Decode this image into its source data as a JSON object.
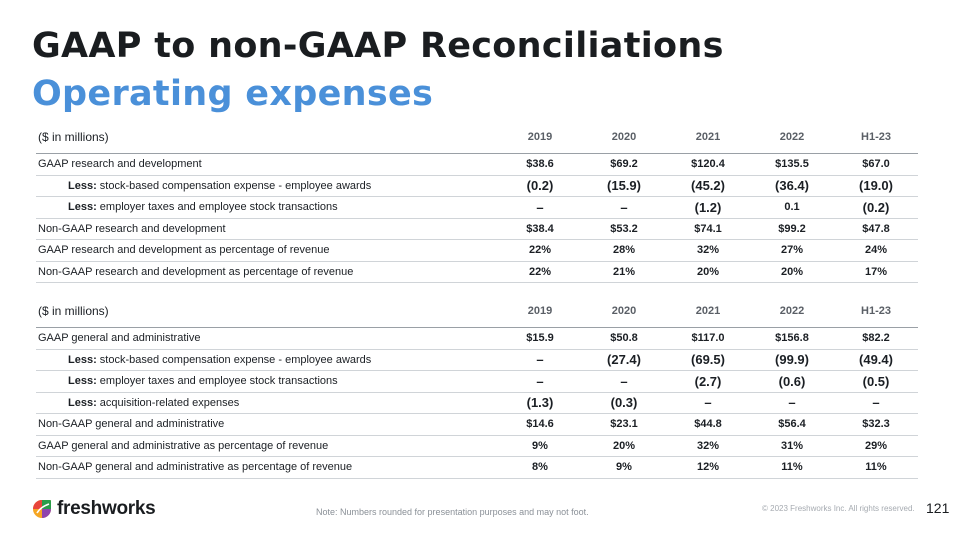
{
  "title": "GAAP to non-GAAP Reconciliations",
  "subtitle": "Operating expenses",
  "rd_table": {
    "unit_label": "($ in millions)",
    "years": [
      "2019",
      "2020",
      "2021",
      "2022",
      "H1-23"
    ],
    "rows": [
      {
        "less": "",
        "label": "GAAP research and development",
        "values": [
          "$38.6",
          "$69.2",
          "$120.4",
          "$135.5",
          "$67.0"
        ],
        "indent": false
      },
      {
        "less": "Less:",
        "label": " stock-based compensation expense - employee awards",
        "values": [
          "(0.2)",
          "(15.9)",
          "(45.2)",
          "(36.4)",
          "(19.0)"
        ],
        "indent": true
      },
      {
        "less": "Less:",
        "label": " employer taxes and employee stock transactions",
        "values": [
          "–",
          "–",
          "(1.2)",
          "0.1",
          "(0.2)"
        ],
        "indent": true
      },
      {
        "less": "",
        "label": "Non-GAAP research and development",
        "values": [
          "$38.4",
          "$53.2",
          "$74.1",
          "$99.2",
          "$47.8"
        ],
        "indent": false
      },
      {
        "less": "",
        "label": "GAAP research and development as percentage of revenue",
        "values": [
          "22%",
          "28%",
          "32%",
          "27%",
          "24%"
        ],
        "indent": false
      },
      {
        "less": "",
        "label": "Non-GAAP research and development as percentage of revenue",
        "values": [
          "22%",
          "21%",
          "20%",
          "20%",
          "17%"
        ],
        "indent": false
      }
    ]
  },
  "ga_table": {
    "unit_label": "($ in millions)",
    "years": [
      "2019",
      "2020",
      "2021",
      "2022",
      "H1-23"
    ],
    "rows": [
      {
        "less": "",
        "label": "GAAP general and administrative",
        "values": [
          "$15.9",
          "$50.8",
          "$117.0",
          "$156.8",
          "$82.2"
        ],
        "indent": false
      },
      {
        "less": "Less:",
        "label": " stock-based compensation expense - employee awards",
        "values": [
          "–",
          "(27.4)",
          "(69.5)",
          "(99.9)",
          "(49.4)"
        ],
        "indent": true
      },
      {
        "less": "Less:",
        "label": " employer taxes and employee stock transactions",
        "values": [
          "–",
          "–",
          "(2.7)",
          "(0.6)",
          "(0.5)"
        ],
        "indent": true
      },
      {
        "less": "Less:",
        "label": " acquisition-related expenses",
        "values": [
          "(1.3)",
          "(0.3)",
          "–",
          "–",
          "–"
        ],
        "indent": true
      },
      {
        "less": "",
        "label": "Non-GAAP general and administrative",
        "values": [
          "$14.6",
          "$23.1",
          "$44.8",
          "$56.4",
          "$32.3"
        ],
        "indent": false
      },
      {
        "less": "",
        "label": "GAAP general and administrative as percentage of revenue",
        "values": [
          "9%",
          "20%",
          "32%",
          "31%",
          "29%"
        ],
        "indent": false
      },
      {
        "less": "",
        "label": "Non-GAAP general and administrative as percentage of revenue",
        "values": [
          "8%",
          "9%",
          "12%",
          "11%",
          "11%"
        ],
        "indent": false
      }
    ]
  },
  "footer": {
    "logo_text": "freshworks",
    "logo_icon": "freshworks-logo-icon",
    "note": "Note: Numbers rounded for presentation purposes and may not foot.",
    "copyright": "© 2023 Freshworks Inc. All rights reserved.",
    "page_number": "121"
  }
}
